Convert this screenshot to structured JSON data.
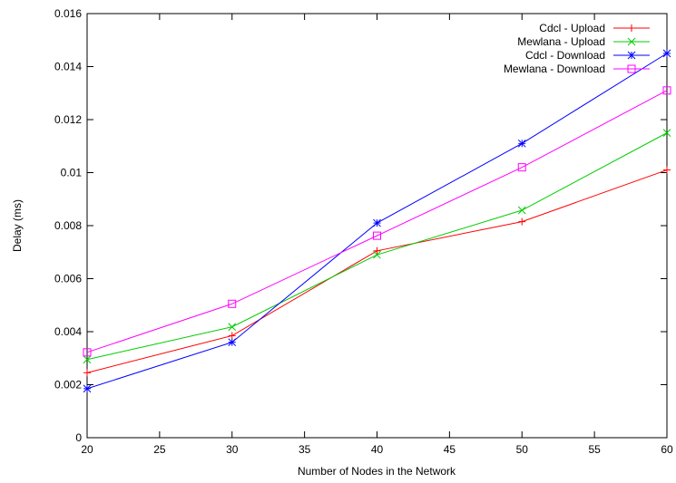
{
  "chart_data": {
    "type": "line",
    "title": "",
    "xlabel": "Number of Nodes in the Network",
    "ylabel": "Delay (ms)",
    "xlim": [
      20,
      60
    ],
    "ylim": [
      0,
      0.016
    ],
    "x_ticks": [
      20,
      25,
      30,
      35,
      40,
      45,
      50,
      55,
      60
    ],
    "y_ticks": [
      0,
      0.002,
      0.004,
      0.006,
      0.008,
      0.01,
      0.012,
      0.014,
      0.016
    ],
    "x_tick_labels": [
      "20",
      "25",
      "30",
      "35",
      "40",
      "45",
      "50",
      "55",
      "60"
    ],
    "y_tick_labels": [
      "0",
      "0.002",
      "0.004",
      "0.006",
      "0.008",
      "0.01",
      "0.012",
      "0.014",
      "0.016"
    ],
    "grid": false,
    "legend_position": "top-right",
    "x": [
      20,
      30,
      40,
      50,
      60
    ],
    "series": [
      {
        "name": "Cdcl - Upload",
        "color": "#ff0000",
        "marker": "plus",
        "values": [
          0.00245,
          0.00385,
          0.00705,
          0.00815,
          0.0101
        ]
      },
      {
        "name": "Mewlana - Upload",
        "color": "#00cc00",
        "marker": "cross",
        "values": [
          0.00295,
          0.00418,
          0.0069,
          0.00858,
          0.0115
        ]
      },
      {
        "name": "Cdcl - Download",
        "color": "#0000ff",
        "marker": "star",
        "values": [
          0.00185,
          0.0036,
          0.0081,
          0.0111,
          0.0145
        ]
      },
      {
        "name": "Mewlana - Download",
        "color": "#ff00ff",
        "marker": "square",
        "values": [
          0.00322,
          0.00505,
          0.00762,
          0.0102,
          0.0131
        ]
      }
    ]
  }
}
